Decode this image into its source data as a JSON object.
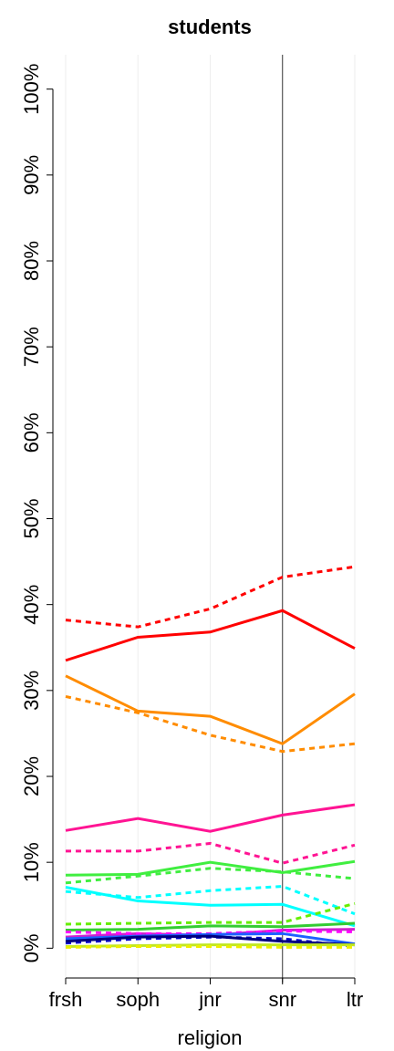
{
  "chart_data": {
    "type": "line",
    "title": "students",
    "xlabel": "religion",
    "categories": [
      "frsh",
      "soph",
      "jnr",
      "snr",
      "ltr"
    ],
    "highlight": "snr",
    "ylim": [
      -4,
      104
    ],
    "yticks": [
      {
        "value": 0,
        "label": "0%"
      },
      {
        "value": 10,
        "label": "10%"
      },
      {
        "value": 20,
        "label": "20%"
      },
      {
        "value": 30,
        "label": "30%"
      },
      {
        "value": 40,
        "label": "40%"
      },
      {
        "value": 50,
        "label": "50%"
      },
      {
        "value": 60,
        "label": "60%"
      },
      {
        "value": 70,
        "label": "70%"
      },
      {
        "value": 80,
        "label": "80%"
      },
      {
        "value": 90,
        "label": "90%"
      },
      {
        "value": 100,
        "label": "100%"
      }
    ],
    "grid": true,
    "series": [
      {
        "color": "#ff0000",
        "dashed": true,
        "values": [
          38.2,
          37.4,
          39.5,
          43.2,
          44.4
        ]
      },
      {
        "color": "#ff0000",
        "dashed": false,
        "values": [
          33.5,
          36.2,
          36.8,
          39.3,
          34.9
        ]
      },
      {
        "color": "#ff8c00",
        "dashed": false,
        "values": [
          31.7,
          27.6,
          27.0,
          23.8,
          29.6
        ]
      },
      {
        "color": "#ff8c00",
        "dashed": true,
        "values": [
          29.3,
          27.4,
          24.8,
          22.9,
          23.8
        ]
      },
      {
        "color": "#ff1493",
        "dashed": false,
        "values": [
          13.7,
          15.1,
          13.6,
          15.5,
          16.7
        ]
      },
      {
        "color": "#ff1493",
        "dashed": true,
        "values": [
          11.3,
          11.3,
          12.2,
          9.9,
          12.0
        ]
      },
      {
        "color": "#40ee40",
        "dashed": false,
        "values": [
          8.5,
          8.6,
          10.0,
          8.8,
          10.1
        ]
      },
      {
        "color": "#40ee40",
        "dashed": true,
        "values": [
          7.6,
          8.4,
          9.3,
          8.9,
          8.1
        ]
      },
      {
        "color": "#00ffff",
        "dashed": false,
        "values": [
          7.1,
          5.5,
          5.0,
          5.1,
          2.6
        ]
      },
      {
        "color": "#00ffff",
        "dashed": true,
        "values": [
          6.6,
          5.9,
          6.7,
          7.2,
          4.0
        ]
      },
      {
        "color": "#66ee00",
        "dashed": true,
        "values": [
          2.8,
          2.9,
          3.0,
          3.0,
          5.2
        ]
      },
      {
        "color": "#33cc33",
        "dashed": false,
        "values": [
          2.1,
          2.2,
          2.6,
          2.5,
          2.9
        ]
      },
      {
        "color": "#cc22cc",
        "dashed": false,
        "values": [
          1.3,
          1.7,
          1.5,
          2.1,
          2.2
        ]
      },
      {
        "color": "#ff00ff",
        "dashed": true,
        "values": [
          1.9,
          1.7,
          1.7,
          2.0,
          1.9
        ]
      },
      {
        "color": "#1e60ff",
        "dashed": false,
        "values": [
          1.1,
          1.4,
          1.6,
          1.7,
          0.5
        ]
      },
      {
        "color": "#0000cd",
        "dashed": true,
        "values": [
          0.6,
          1.1,
          1.3,
          1.1,
          0.2
        ]
      },
      {
        "color": "#000080",
        "dashed": false,
        "values": [
          0.8,
          1.3,
          1.4,
          0.8,
          0.4
        ]
      },
      {
        "color": "#c0e820",
        "dashed": false,
        "values": [
          0.2,
          0.3,
          0.4,
          0.4,
          0.4
        ]
      },
      {
        "color": "#eeee00",
        "dashed": true,
        "values": [
          0.1,
          0.2,
          0.2,
          0.1,
          0.1
        ]
      }
    ]
  }
}
